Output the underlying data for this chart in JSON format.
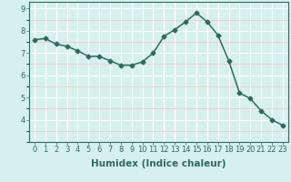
{
  "x": [
    0,
    1,
    2,
    3,
    4,
    5,
    6,
    7,
    8,
    9,
    10,
    11,
    12,
    13,
    14,
    15,
    16,
    17,
    18,
    19,
    20,
    21,
    22,
    23
  ],
  "y": [
    7.6,
    7.65,
    7.4,
    7.3,
    7.1,
    6.85,
    6.85,
    6.65,
    6.45,
    6.45,
    6.6,
    7.0,
    7.75,
    8.05,
    8.4,
    8.8,
    8.4,
    7.8,
    6.65,
    5.2,
    4.95,
    4.4,
    4.0,
    3.75
  ],
  "line_color": "#2e6b5e",
  "marker": "D",
  "marker_size": 2.5,
  "bg_color": "#d6f0ee",
  "grid_major_color": "#ffffff",
  "grid_minor_color": "#f0c8c8",
  "xlabel": "Humidex (Indice chaleur)",
  "ylim": [
    3.0,
    9.3
  ],
  "xlim": [
    -0.5,
    23.5
  ],
  "yticks": [
    4,
    5,
    6,
    7,
    8,
    9
  ],
  "xticks": [
    0,
    1,
    2,
    3,
    4,
    5,
    6,
    7,
    8,
    9,
    10,
    11,
    12,
    13,
    14,
    15,
    16,
    17,
    18,
    19,
    20,
    21,
    22,
    23
  ],
  "xlabel_fontsize": 7.5,
  "tick_fontsize": 6.0,
  "line_width": 1.1
}
